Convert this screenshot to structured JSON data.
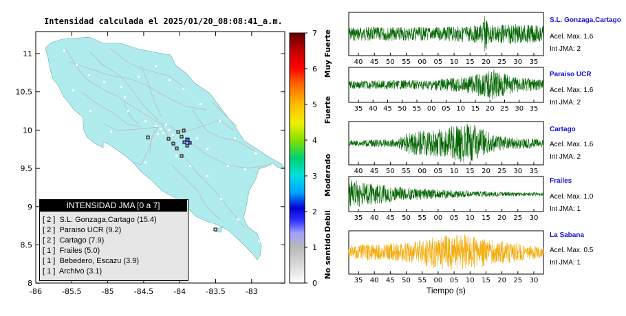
{
  "title": "Intensidad calculada el 2025/01/20_08:08:41_a.m.",
  "map": {
    "x_ticks": [
      "-86",
      "-85.5",
      "-85",
      "-84.5",
      "-84",
      "-83.5",
      "-83"
    ],
    "y_ticks": [
      "11",
      "10.5",
      "10",
      "9.5",
      "9",
      "8.5",
      "8"
    ],
    "land_color": "#b0ecee"
  },
  "colorbar": {
    "ticks": [
      "0",
      "1",
      "2",
      "3",
      "4",
      "5",
      "6",
      "7"
    ],
    "labels": [
      "No sentido",
      "Debil",
      "Moderado",
      "Fuerte",
      "Muy Fuerte"
    ]
  },
  "legend": {
    "title": "INTENSIDAD JMA [0 a 7]",
    "items": [
      "[ 2 ]  S.L. Gonzaga,Cartago (15.4)",
      "[ 2 ]  Paraiso UCR (9.2)",
      "[ 2 ]  Cartago (7.9)",
      "[ 1 ]  Frailes (5.0)",
      "[ 1 ]  Bebedero, Escazu (3.9)",
      "[ 1 ]  Archivo (3.1)"
    ]
  },
  "stations": [
    {
      "name": "S.L. Gonzaga,Cartago",
      "accel": "Acel. Max. 1.6",
      "jma": "Int JMA: 2",
      "color": "#006400",
      "ticks": [
        "40",
        "45",
        "50",
        "55",
        "00",
        "05",
        "10",
        "15",
        "20",
        "25",
        "30",
        "35"
      ]
    },
    {
      "name": "Paraiso UCR",
      "accel": "Acel. Max. 1.6",
      "jma": "Int JMA: 2",
      "color": "#006400",
      "ticks": [
        "35",
        "40",
        "45",
        "50",
        "55",
        "00",
        "05",
        "10",
        "15",
        "20",
        "25",
        "30",
        "35"
      ]
    },
    {
      "name": "Cartago",
      "accel": "Acel. Max. 1.6",
      "jma": "Int JMA: 2",
      "color": "#006400",
      "ticks": [
        "40",
        "45",
        "50",
        "55",
        "00",
        "05",
        "10",
        "15",
        "20",
        "25",
        "30",
        "35"
      ]
    },
    {
      "name": "Frailes",
      "accel": "Acel. Max. 1.0",
      "jma": "Int JMA: 1",
      "color": "#006400",
      "ticks": [
        "35",
        "40",
        "45",
        "50",
        "55",
        "00",
        "05",
        "10",
        "15",
        "20",
        "25",
        "30"
      ]
    },
    {
      "name": "La Sabana",
      "accel": "Acel. Max. 0.5",
      "jma": "Int JMA: 1",
      "color": "#f5a800",
      "ticks": [
        "35",
        "40",
        "45",
        "50",
        "55",
        "00",
        "05",
        "10",
        "15",
        "20",
        "25",
        "30"
      ]
    }
  ],
  "xlabel": "Tiempo (s)"
}
